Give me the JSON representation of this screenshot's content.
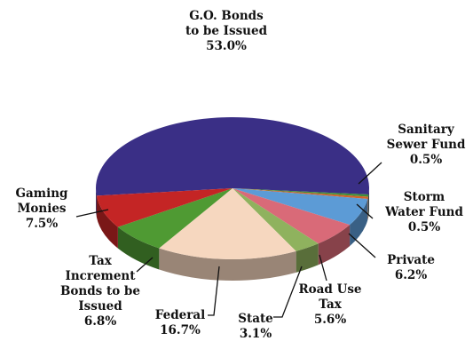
{
  "chart_data": {
    "type": "pie",
    "title": "",
    "slices": [
      {
        "name": "slice-go-bonds",
        "label_lines": [
          "G.O. Bonds",
          "to be Issued"
        ],
        "value_label": "53.0%",
        "value": 53.0,
        "color": "#3a2f86"
      },
      {
        "name": "slice-sanitary-sewer",
        "label_lines": [
          "Sanitary",
          "Sewer Fund"
        ],
        "value_label": "0.5%",
        "value": 0.5,
        "color": "#3f8f3a"
      },
      {
        "name": "slice-storm-water",
        "label_lines": [
          "Storm",
          "Water Fund"
        ],
        "value_label": "0.5%",
        "value": 0.5,
        "color": "#d2632a"
      },
      {
        "name": "slice-private",
        "label_lines": [
          "Private"
        ],
        "value_label": "6.2%",
        "value": 6.2,
        "color": "#5c9bd6"
      },
      {
        "name": "slice-road-use-tax",
        "label_lines": [
          "Road Use",
          "Tax"
        ],
        "value_label": "5.6%",
        "value": 5.6,
        "color": "#d96a78"
      },
      {
        "name": "slice-state",
        "label_lines": [
          "State"
        ],
        "value_label": "3.1%",
        "value": 3.1,
        "color": "#8fb25e"
      },
      {
        "name": "slice-federal",
        "label_lines": [
          "Federal"
        ],
        "value_label": "16.7%",
        "value": 16.7,
        "color": "#f6d7bf"
      },
      {
        "name": "slice-tax-increment",
        "label_lines": [
          "Tax",
          "Increment",
          "Bonds to be",
          "Issued"
        ],
        "value_label": "6.8%",
        "value": 6.8,
        "color": "#4f9a33"
      },
      {
        "name": "slice-gaming-monies",
        "label_lines": [
          "Gaming",
          "Monies"
        ],
        "value_label": "7.5%",
        "value": 7.5,
        "color": "#c42525"
      }
    ]
  }
}
